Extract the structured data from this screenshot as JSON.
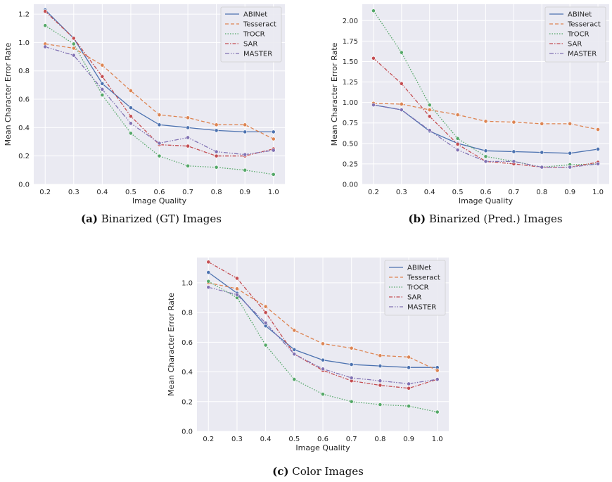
{
  "chart_data": [
    {
      "type": "line",
      "caption_tag": "(a)",
      "caption_text": "Binarized (GT) Images",
      "xlabel": "Image Quality",
      "ylabel": "Mean Character Error Rate",
      "x": [
        0.2,
        0.3,
        0.4,
        0.5,
        0.6,
        0.7,
        0.8,
        0.9,
        1.0
      ],
      "x_ticks": [
        "0.2",
        "0.3",
        "0.4",
        "0.5",
        "0.6",
        "0.7",
        "0.8",
        "0.9",
        "1.0"
      ],
      "y_ticks": [
        "0.0",
        "0.2",
        "0.4",
        "0.6",
        "0.8",
        "1.0",
        "1.2"
      ],
      "ylim": [
        0,
        1.27
      ],
      "grid": true,
      "legend_position": "top-right",
      "series": [
        {
          "name": "ABINet",
          "values": [
            1.23,
            1.03,
            0.71,
            0.54,
            0.42,
            0.4,
            0.38,
            0.37,
            0.37
          ]
        },
        {
          "name": "Tesseract",
          "values": [
            0.99,
            0.96,
            0.84,
            0.66,
            0.49,
            0.47,
            0.42,
            0.42,
            0.32
          ]
        },
        {
          "name": "TrOCR",
          "values": [
            1.12,
            0.99,
            0.63,
            0.36,
            0.2,
            0.13,
            0.12,
            0.1,
            0.07
          ]
        },
        {
          "name": "SAR",
          "values": [
            1.22,
            1.03,
            0.76,
            0.48,
            0.28,
            0.27,
            0.2,
            0.2,
            0.25
          ]
        },
        {
          "name": "MASTER",
          "values": [
            0.97,
            0.91,
            0.67,
            0.43,
            0.29,
            0.33,
            0.23,
            0.21,
            0.24
          ]
        }
      ]
    },
    {
      "type": "line",
      "caption_tag": "(b)",
      "caption_text": "Binarized (Pred.) Images",
      "xlabel": "Image Quality",
      "ylabel": "Mean Character Error Rate",
      "x": [
        0.2,
        0.3,
        0.4,
        0.5,
        0.6,
        0.7,
        0.8,
        0.9,
        1.0
      ],
      "x_ticks": [
        "0.2",
        "0.3",
        "0.4",
        "0.5",
        "0.6",
        "0.7",
        "0.8",
        "0.9",
        "1.0"
      ],
      "y_ticks": [
        "0.00",
        "0.25",
        "0.50",
        "0.75",
        "1.00",
        "1.25",
        "1.50",
        "1.75",
        "2.00"
      ],
      "ylim": [
        0,
        2.2
      ],
      "grid": true,
      "legend_position": "top-right",
      "series": [
        {
          "name": "ABINet",
          "values": [
            0.97,
            0.91,
            0.65,
            0.5,
            0.41,
            0.4,
            0.39,
            0.38,
            0.43
          ]
        },
        {
          "name": "Tesseract",
          "values": [
            0.99,
            0.98,
            0.91,
            0.85,
            0.77,
            0.76,
            0.74,
            0.74,
            0.67
          ]
        },
        {
          "name": "TrOCR",
          "values": [
            2.12,
            1.61,
            0.97,
            0.56,
            0.34,
            0.28,
            0.21,
            0.24,
            0.25
          ]
        },
        {
          "name": "SAR",
          "values": [
            1.54,
            1.23,
            0.83,
            0.49,
            0.28,
            0.25,
            0.21,
            0.21,
            0.27
          ]
        },
        {
          "name": "MASTER",
          "values": [
            0.97,
            0.91,
            0.66,
            0.42,
            0.28,
            0.28,
            0.21,
            0.21,
            0.25
          ]
        }
      ]
    },
    {
      "type": "line",
      "caption_tag": "(c)",
      "caption_text": "Color Images",
      "xlabel": "Image Quality",
      "ylabel": "Mean Character Error Rate",
      "x": [
        0.2,
        0.3,
        0.4,
        0.5,
        0.6,
        0.7,
        0.8,
        0.9,
        1.0
      ],
      "x_ticks": [
        "0.2",
        "0.3",
        "0.4",
        "0.5",
        "0.6",
        "0.7",
        "0.8",
        "0.9",
        "1.0"
      ],
      "y_ticks": [
        "0.0",
        "0.2",
        "0.4",
        "0.6",
        "0.8",
        "1.0"
      ],
      "ylim": [
        0,
        1.17
      ],
      "grid": true,
      "legend_position": "top-right",
      "series": [
        {
          "name": "ABINet",
          "values": [
            1.07,
            0.93,
            0.71,
            0.55,
            0.48,
            0.45,
            0.44,
            0.43,
            0.43
          ]
        },
        {
          "name": "Tesseract",
          "values": [
            1.0,
            0.96,
            0.84,
            0.68,
            0.59,
            0.56,
            0.51,
            0.5,
            0.41
          ]
        },
        {
          "name": "TrOCR",
          "values": [
            1.01,
            0.9,
            0.58,
            0.35,
            0.25,
            0.2,
            0.18,
            0.17,
            0.13
          ]
        },
        {
          "name": "SAR",
          "values": [
            1.14,
            1.03,
            0.8,
            0.52,
            0.41,
            0.34,
            0.31,
            0.29,
            0.35
          ]
        },
        {
          "name": "MASTER",
          "values": [
            0.97,
            0.92,
            0.73,
            0.52,
            0.42,
            0.36,
            0.34,
            0.32,
            0.35
          ]
        }
      ]
    }
  ],
  "series_styles": [
    {
      "color": "#4c72b0",
      "dash": ""
    },
    {
      "color": "#dd8452",
      "dash": "5,3"
    },
    {
      "color": "#55a868",
      "dash": "1.5,2"
    },
    {
      "color": "#c44e52",
      "dash": "5,2,1.5,2"
    },
    {
      "color": "#8172b3",
      "dash": "6,2,1.5,2,1.5,2"
    }
  ],
  "colors": {
    "panel_background": "#eaeaf2",
    "grid": "#ffffff",
    "text": "#262626"
  }
}
